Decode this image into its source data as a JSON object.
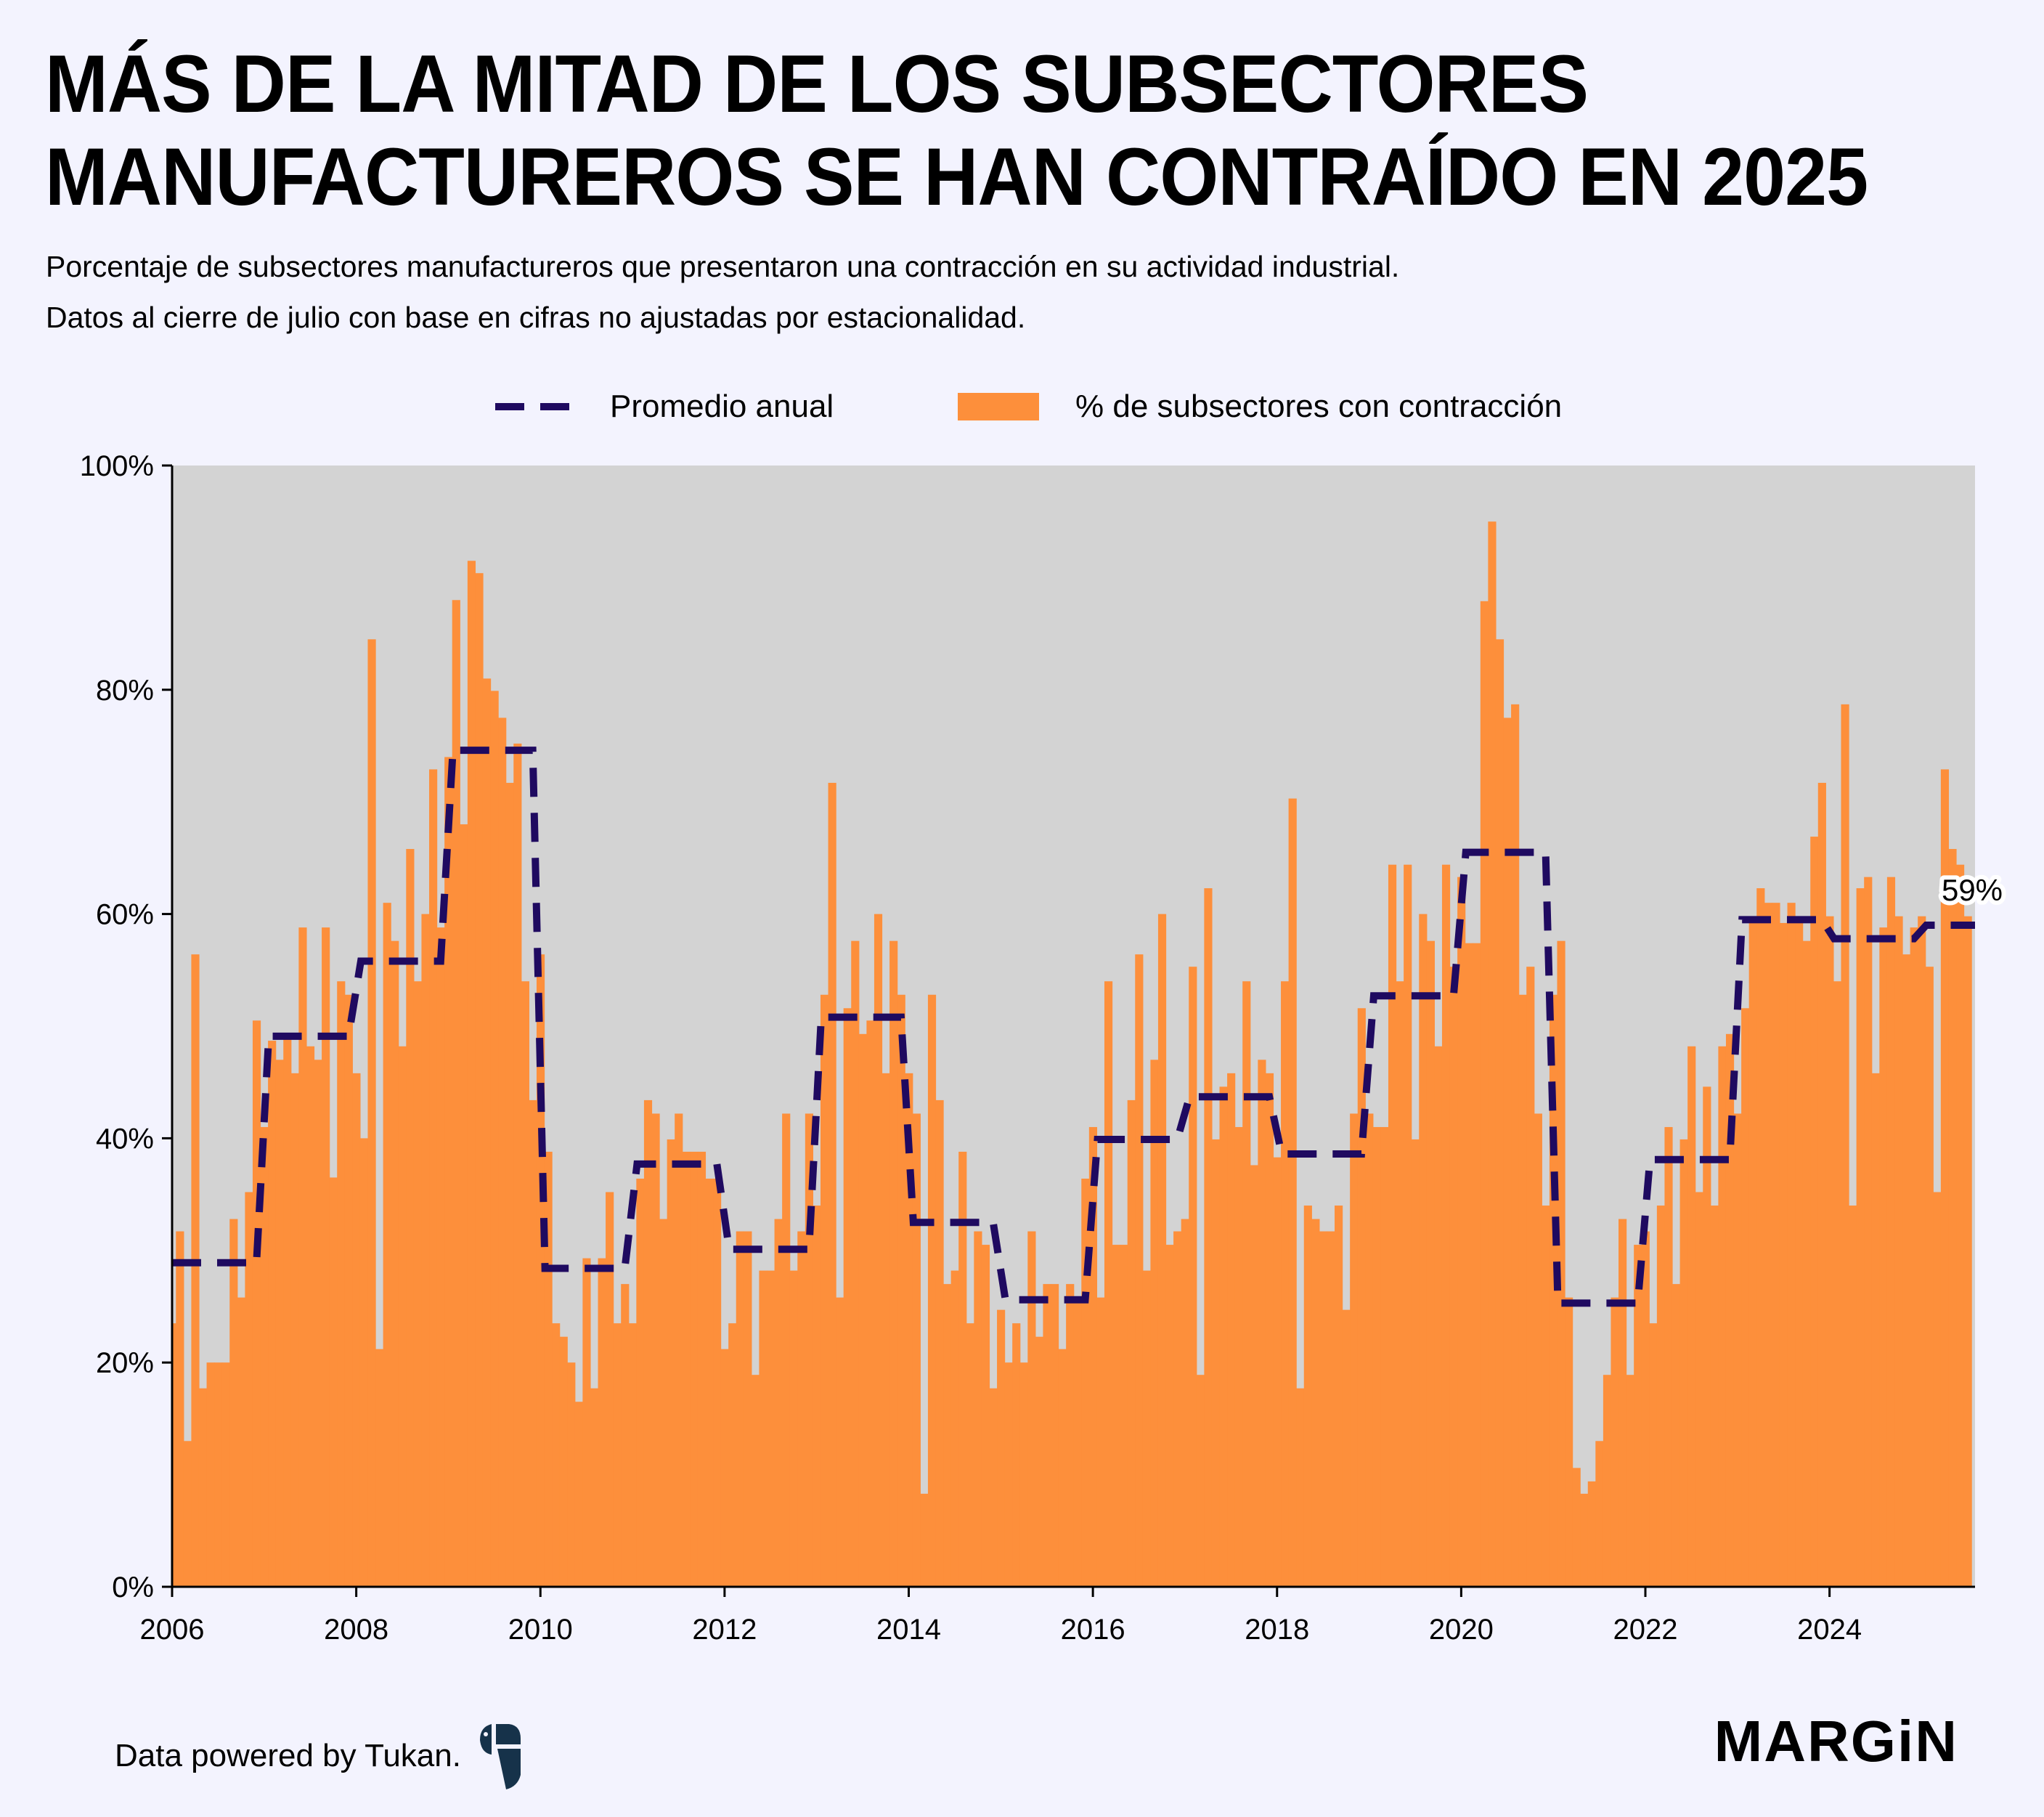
{
  "header": {
    "title_line1": "MÁS DE LA MITAD DE LOS SUBSECTORES",
    "title_line2": "MANUFACTUREROS SE HAN CONTRAÍDO EN 2025",
    "subtitle_line1": "Porcentaje de subsectores manufactureros que presentaron una contracción en su actividad industrial.",
    "subtitle_line2": "Datos al cierre de julio con base en cifras no ajustadas por estacionalidad."
  },
  "legend": {
    "line_label": "Promedio anual",
    "bar_label": "% de subsectores con contracción"
  },
  "footer": {
    "credit": "Data powered by Tukan.",
    "brand": "MARGiN",
    "logo_name": "Tukan"
  },
  "colors": {
    "bar": "#fd8f3b",
    "line": "#1f0a60",
    "plot_bg": "#d3d3d3",
    "page_bg": "#f3f3fe"
  },
  "chart_data": {
    "type": "bar",
    "start": "2006-01",
    "frequency": "monthly",
    "ylim": [
      0,
      100
    ],
    "xlim_years": [
      2006,
      2025.58
    ],
    "yticks": [
      "0%",
      "20%",
      "40%",
      "60%",
      "80%",
      "100%"
    ],
    "ytick_values": [
      0,
      20,
      40,
      60,
      80,
      100
    ],
    "xticks": [
      "2006",
      "2008",
      "2010",
      "2012",
      "2014",
      "2016",
      "2018",
      "2020",
      "2022",
      "2024"
    ],
    "grid": false,
    "legend_position": "top-center",
    "last_value_label": "59%",
    "series": [
      {
        "name": "% de subsectores con contracción",
        "type": "bar",
        "values": [
          23.5,
          31.7,
          13,
          56.4,
          17.7,
          20,
          20,
          20,
          32.8,
          25.8,
          35.2,
          50.5,
          41,
          48.7,
          47,
          49.3,
          45.8,
          58.8,
          48.2,
          47,
          58.8,
          36.5,
          54,
          52.8,
          45.8,
          40,
          84.5,
          21.2,
          61,
          57.6,
          48.2,
          65.8,
          54,
          60,
          72.9,
          58.8,
          74,
          88,
          68,
          91.5,
          90.4,
          81,
          79.9,
          77.5,
          71.7,
          75.2,
          54,
          43.4,
          56.4,
          38.8,
          23.5,
          22.3,
          20,
          16.5,
          29.3,
          17.7,
          29.3,
          35.2,
          23.5,
          27,
          23.5,
          36.4,
          43.4,
          42.2,
          32.8,
          39.9,
          42.2,
          38.8,
          38.8,
          38.8,
          36.4,
          36.4,
          21.2,
          23.5,
          31.7,
          31.7,
          18.9,
          28.2,
          28.2,
          32.8,
          42.2,
          28.2,
          31.7,
          42.2,
          34,
          52.8,
          71.7,
          25.8,
          51.6,
          57.6,
          49.3,
          50.5,
          60,
          45.8,
          57.6,
          52.8,
          45.8,
          42.2,
          8.3,
          52.8,
          43.4,
          27,
          28.2,
          38.8,
          23.5,
          31.7,
          30.5,
          17.7,
          24.7,
          20,
          23.5,
          20,
          31.7,
          22.3,
          27,
          27,
          21.2,
          27,
          25.8,
          36.4,
          41,
          25.8,
          54,
          30.5,
          30.5,
          43.4,
          56.4,
          28.2,
          47,
          60,
          30.5,
          31.7,
          32.8,
          55.3,
          18.9,
          62.3,
          39.9,
          44.6,
          45.8,
          41,
          54,
          37.6,
          47,
          45.8,
          38.3,
          54,
          70.3,
          17.7,
          34,
          32.8,
          31.7,
          31.7,
          34,
          24.7,
          42.2,
          51.6,
          42.2,
          41,
          41,
          64.4,
          54,
          64.4,
          39.9,
          60,
          57.6,
          48.2,
          64.4,
          55.3,
          63.3,
          57.4,
          57.4,
          87.9,
          95,
          84.5,
          77.5,
          78.7,
          52.8,
          55.3,
          42.2,
          34,
          52.8,
          57.6,
          25.8,
          10.6,
          8.3,
          9.4,
          13,
          18.9,
          25.8,
          32.8,
          18.9,
          30.5,
          31.7,
          23.5,
          34,
          41,
          27,
          39.9,
          48.2,
          35.2,
          44.6,
          34,
          48.2,
          49.3,
          42.2,
          51.6,
          59.2,
          62.3,
          61,
          61,
          59.2,
          61,
          59.2,
          57.6,
          66.9,
          71.7,
          59.8,
          54,
          78.7,
          34,
          62.3,
          63.3,
          45.8,
          58.8,
          63.3,
          59.8,
          56.4,
          58.8,
          59.8,
          55.3,
          35.2,
          72.9,
          65.8,
          64.4,
          59.8
        ]
      },
      {
        "name": "Promedio anual",
        "type": "step-line",
        "years": [
          2006,
          2007,
          2008,
          2009,
          2010,
          2011,
          2012,
          2013,
          2014,
          2015,
          2016,
          2017,
          2018,
          2019,
          2020,
          2021,
          2022,
          2023,
          2024,
          2025
        ],
        "values": [
          28.9,
          49.1,
          55.8,
          74.6,
          28.4,
          37.7,
          30.1,
          50.8,
          32.5,
          25.6,
          39.9,
          43.7,
          38.6,
          52.7,
          65.5,
          25.3,
          38.1,
          59.5,
          57.8,
          59.0
        ]
      }
    ]
  }
}
